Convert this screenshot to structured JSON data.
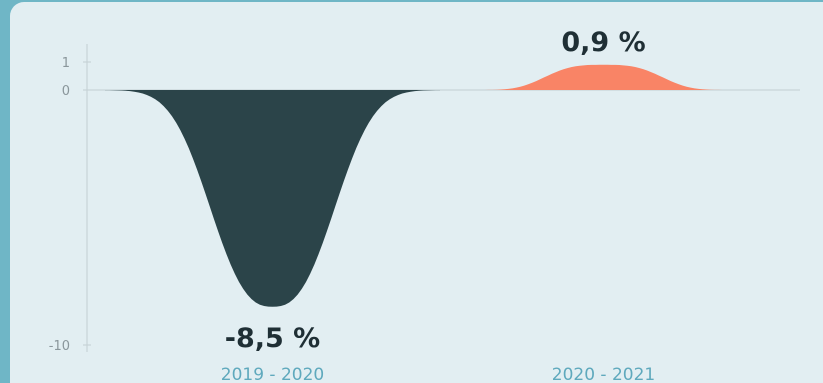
{
  "chart_data": {
    "type": "area",
    "categories": [
      "2019 - 2020",
      "2020 - 2021"
    ],
    "series": [
      {
        "values": [
          -8.5,
          0.9
        ],
        "colors": [
          "#2b4449",
          "#f98466"
        ]
      }
    ],
    "data_labels": [
      "-8,5 %",
      "0,9 %"
    ],
    "y_ticks": [
      {
        "value": 1,
        "label": "1"
      },
      {
        "value": 0,
        "label": "0"
      },
      {
        "value": -10,
        "label": "-10"
      }
    ],
    "ylim": [
      -10,
      1
    ],
    "grid": false,
    "colors": {
      "negative": "#2b4449",
      "positive": "#f98466",
      "axis": "#c3cfd3",
      "tick_text": "#8a969b",
      "category_text": "#5fa9bd",
      "label_text": "#1f2f35"
    }
  }
}
